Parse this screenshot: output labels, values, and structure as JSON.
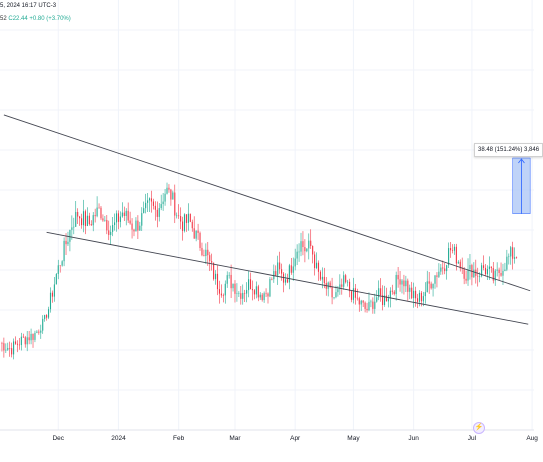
{
  "header": {
    "title_fragment": "5, 2024 16:17 UTC-3",
    "prefix_fragment": "52",
    "close_label": "C22.44",
    "change_label": "+0.80 (+3.70%)"
  },
  "projection": {
    "label": "38.48 (151.24%) 3,846"
  },
  "colors": {
    "up": "#22ab94",
    "down": "#f23645",
    "trendline": "#434651",
    "projection_fill": "#a9c4f5",
    "projection_stroke": "#2962ff",
    "grid": "#f0f3fa",
    "axis_text": "#131722"
  },
  "icons": {
    "corner_button": "lightning-icon"
  },
  "chart_data": {
    "type": "candlestick",
    "title": "",
    "xlabel": "",
    "ylabel": "",
    "x_ticks": [
      "Dec",
      "2024",
      "Feb",
      "Mar",
      "Apr",
      "May",
      "Jun",
      "Jul",
      "Aug"
    ],
    "grid": true,
    "approx_close_series": [
      13.2,
      12.9,
      12.6,
      13.1,
      13.5,
      13.8,
      14.0,
      14.8,
      16.2,
      18.5,
      20.6,
      22.1,
      23.5,
      24.9,
      25.6,
      25.2,
      24.8,
      25.5,
      25.9,
      25.1,
      24.3,
      25.0,
      25.7,
      25.2,
      24.6,
      24.9,
      25.6,
      26.3,
      25.8,
      26.5,
      27.6,
      26.8,
      25.4,
      24.8,
      25.1,
      24.2,
      23.3,
      22.6,
      21.4,
      20.2,
      19.6,
      20.4,
      20.1,
      19.3,
      19.6,
      20.2,
      19.8,
      19.2,
      19.4,
      20.6,
      21.2,
      20.5,
      20.9,
      22.4,
      23.5,
      22.8,
      23.1,
      21.2,
      20.1,
      19.6,
      18.9,
      19.3,
      20.2,
      19.5,
      18.8,
      18.3,
      17.7,
      18.4,
      19.1,
      18.7,
      19.3,
      19.9,
      20.7,
      20.2,
      19.2,
      18.6,
      19.1,
      19.8,
      20.6,
      21.2,
      21.7,
      22.9,
      22.4,
      21.6,
      20.8,
      21.3,
      20.9,
      21.4,
      21.0,
      20.4,
      21.2,
      21.8,
      22.4,
      22.44
    ],
    "trendlines": [
      {
        "from": {
          "date": "2023-11-03",
          "price": 36.8
        },
        "to": {
          "date": "2024-07-31",
          "price": 19.5
        }
      },
      {
        "from": {
          "date": "2023-11-25",
          "price": 24.2
        },
        "to": {
          "date": "2024-07-30",
          "price": 15.6
        }
      }
    ],
    "projection_box": {
      "from_date": "2024-07-22",
      "to_date": "2024-07-31",
      "from_price": 25.6,
      "to_price": 64.08,
      "change": 38.48,
      "change_pct": 151.24
    }
  }
}
